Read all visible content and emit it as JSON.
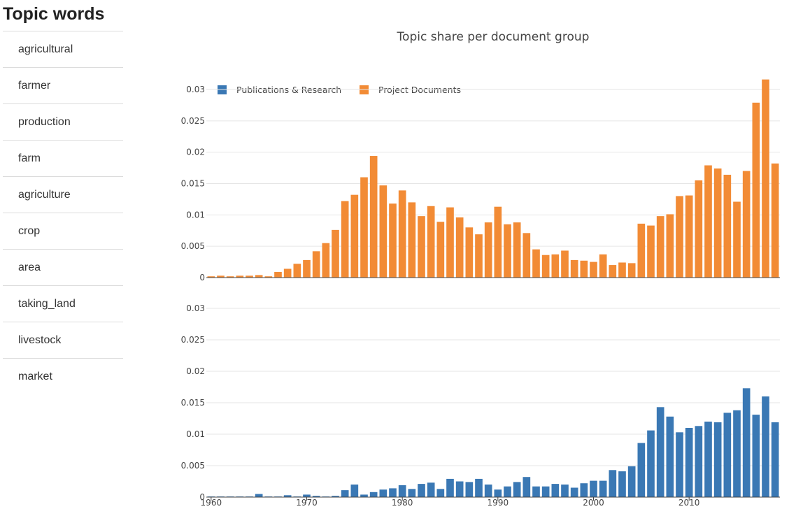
{
  "sidebar": {
    "title": "Topic words",
    "words": [
      "agricultural",
      "farmer",
      "production",
      "farm",
      "agriculture",
      "crop",
      "area",
      "taking_land",
      "livestock",
      "market"
    ]
  },
  "colors": {
    "publications": "#3a78b4",
    "projects": "#f28b35"
  },
  "chart_data": {
    "type": "bar",
    "title": "Topic share per document group",
    "legend": {
      "placement": "top-left",
      "entries": [
        "Publications & Research",
        "Project Documents"
      ]
    },
    "x": [
      1960,
      1961,
      1962,
      1963,
      1964,
      1965,
      1966,
      1967,
      1968,
      1969,
      1970,
      1971,
      1972,
      1973,
      1974,
      1975,
      1976,
      1977,
      1978,
      1979,
      1980,
      1981,
      1982,
      1983,
      1984,
      1985,
      1986,
      1987,
      1988,
      1989,
      1990,
      1991,
      1992,
      1993,
      1994,
      1995,
      1996,
      1997,
      1998,
      1999,
      2000,
      2001,
      2002,
      2003,
      2004,
      2005,
      2006,
      2007,
      2008,
      2009,
      2010,
      2011,
      2012,
      2013,
      2014,
      2015,
      2016,
      2017,
      2018,
      2019
    ],
    "xticks": [
      "1960",
      "1970",
      "1980",
      "1990",
      "2000",
      "2010"
    ],
    "yticks": [
      "0",
      "0.005",
      "0.01",
      "0.015",
      "0.02",
      "0.025",
      "0.03"
    ],
    "ylim": [
      0,
      0.03
    ],
    "grid": true,
    "series": [
      {
        "name": "Project Documents",
        "values": [
          0.0002,
          0.0003,
          0.0002,
          0.0003,
          0.0003,
          0.0004,
          0.0002,
          0.0009,
          0.0014,
          0.0022,
          0.0028,
          0.0042,
          0.0055,
          0.0076,
          0.0122,
          0.0132,
          0.016,
          0.0194,
          0.0147,
          0.0118,
          0.0139,
          0.012,
          0.0098,
          0.0114,
          0.0089,
          0.0112,
          0.0096,
          0.008,
          0.0069,
          0.0088,
          0.0113,
          0.0085,
          0.0088,
          0.0071,
          0.0045,
          0.0036,
          0.0037,
          0.0043,
          0.0028,
          0.0027,
          0.0025,
          0.0037,
          0.002,
          0.0024,
          0.0023,
          0.0086,
          0.0083,
          0.0098,
          0.0101,
          0.013,
          0.0131,
          0.0155,
          0.0179,
          0.0174,
          0.0164,
          0.0121,
          0.017,
          0.0279,
          0.0316,
          0.0182
        ]
      },
      {
        "name": "Publications & Research",
        "values": [
          0.0001,
          0.0001,
          0.0001,
          0.0001,
          0.0001,
          0.0005,
          0.0001,
          0.0001,
          0.0003,
          0.0001,
          0.0004,
          0.0002,
          0.0001,
          0.0002,
          0.0011,
          0.002,
          0.0004,
          0.0008,
          0.0012,
          0.0014,
          0.0019,
          0.0013,
          0.0021,
          0.0023,
          0.0013,
          0.0029,
          0.0025,
          0.0024,
          0.0029,
          0.002,
          0.0012,
          0.0017,
          0.0024,
          0.0032,
          0.0017,
          0.0017,
          0.0021,
          0.002,
          0.0015,
          0.0022,
          0.0026,
          0.0026,
          0.0043,
          0.0041,
          0.0049,
          0.0086,
          0.0106,
          0.0143,
          0.0128,
          0.0103,
          0.011,
          0.0113,
          0.012,
          0.0119,
          0.0134,
          0.0138,
          0.0173,
          0.0131,
          0.016,
          0.0119
        ]
      }
    ]
  }
}
